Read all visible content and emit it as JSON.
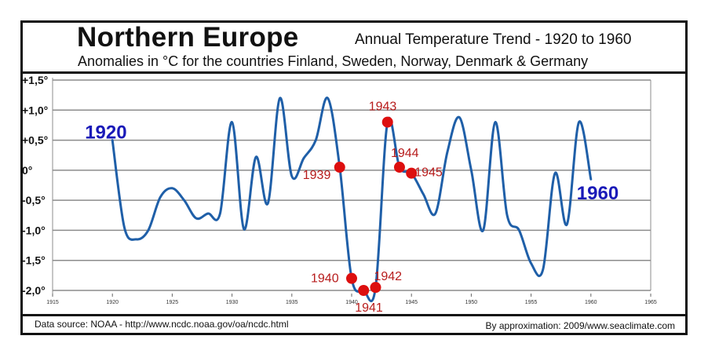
{
  "header": {
    "title": "Northern Europe",
    "subtitle_right": "Annual Temperature Trend - 1920 to 1960",
    "subtitle": "Anomalies in °C for the countries Finland, Sweden, Norway, Denmark & Germany"
  },
  "footer": {
    "source": "Data source: NOAA - http://www.ncdc.noaa.gov/oa/ncdc.html",
    "credit": "By approximation: 2009/www.seaclimate.com"
  },
  "chart_data": {
    "type": "line",
    "xlim": [
      1915,
      1965
    ],
    "ylim": [
      -2.0,
      1.5
    ],
    "x_ticks": [
      1915,
      1920,
      1925,
      1930,
      1935,
      1940,
      1945,
      1950,
      1955,
      1960,
      1965
    ],
    "x_tick_labels": [
      "1915",
      "1920",
      "1925",
      "1930",
      "1935",
      "1940",
      "1945",
      "1950",
      "1955",
      "1960",
      "1965"
    ],
    "y_ticks": [
      1.5,
      1.0,
      0.5,
      0.0,
      -0.5,
      -1.0,
      -1.5,
      -2.0
    ],
    "y_tick_labels": [
      "+1,5°",
      "+1,0°",
      "+0,5°",
      "0°",
      "-0,5°",
      "-1,0°",
      "-1,5°",
      "-2,0°"
    ],
    "grid": "horizontal",
    "line_color": "#1f5fa8",
    "marker_color": "#dd0f0f",
    "series": [
      {
        "x": [
          1920,
          1921,
          1922,
          1923,
          1924,
          1925,
          1926,
          1927,
          1928,
          1929,
          1930,
          1931,
          1932,
          1933,
          1934,
          1935,
          1936,
          1937,
          1938,
          1939,
          1940,
          1941,
          1942,
          1943,
          1944,
          1945,
          1946,
          1947,
          1948,
          1949,
          1950,
          1951,
          1952,
          1953,
          1954,
          1955,
          1956,
          1957,
          1958,
          1959,
          1960
        ],
        "y": [
          0.5,
          -0.95,
          -1.15,
          -1.0,
          -0.45,
          -0.3,
          -0.5,
          -0.8,
          -0.72,
          -0.72,
          0.8,
          -0.98,
          0.22,
          -0.55,
          1.2,
          -0.1,
          0.2,
          0.5,
          1.2,
          0.05,
          -1.8,
          -2.0,
          -1.95,
          0.8,
          0.05,
          -0.05,
          -0.4,
          -0.72,
          0.3,
          0.88,
          0.0,
          -1.0,
          0.8,
          -0.75,
          -1.0,
          -1.55,
          -1.65,
          -0.05,
          -0.9,
          0.8,
          -0.15
        ]
      }
    ],
    "highlighted_points": [
      {
        "x": 1939,
        "y": 0.05,
        "label": "1939"
      },
      {
        "x": 1940,
        "y": -1.8,
        "label": "1940"
      },
      {
        "x": 1941,
        "y": -2.0,
        "label": "1941"
      },
      {
        "x": 1942,
        "y": -1.95,
        "label": "1942"
      },
      {
        "x": 1943,
        "y": 0.8,
        "label": "1943"
      },
      {
        "x": 1944,
        "y": 0.05,
        "label": "1944"
      },
      {
        "x": 1945,
        "y": -0.05,
        "label": "1945"
      }
    ],
    "start_label": "1920",
    "end_label": "1960"
  }
}
